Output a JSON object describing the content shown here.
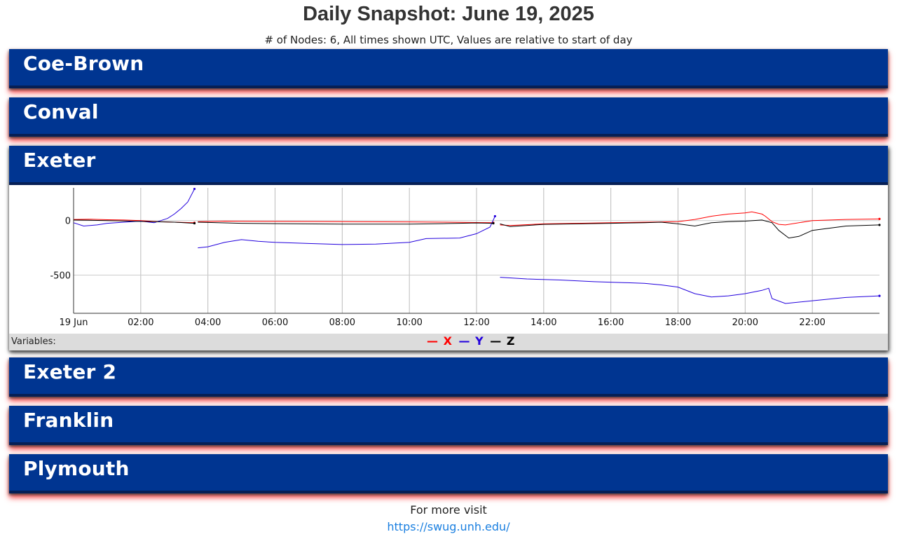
{
  "page": {
    "title": "Daily Snapshot: June 19, 2025",
    "subtitle": "# of Nodes: 6, All times shown UTC, Values are relative to start of day"
  },
  "nodes": [
    {
      "name": "Coe-Brown",
      "expanded": false
    },
    {
      "name": "Conval",
      "expanded": false
    },
    {
      "name": "Exeter",
      "expanded": true
    },
    {
      "name": "Exeter 2",
      "expanded": false
    },
    {
      "name": "Franklin",
      "expanded": false
    },
    {
      "name": "Plymouth",
      "expanded": false
    }
  ],
  "variables_label": "Variables:",
  "legend": [
    {
      "dash": "—",
      "label": "X",
      "color": "#ff0000"
    },
    {
      "dash": "—",
      "label": "Y",
      "color": "#2200dd"
    },
    {
      "dash": "—",
      "label": "Z",
      "color": "#000000"
    }
  ],
  "footer": {
    "text": "For more visit",
    "link": "https://swug.unh.edu/"
  },
  "chart_data": {
    "type": "line",
    "title": "",
    "xlabel": "",
    "ylabel": "",
    "x_unit": "hours UTC",
    "xlim": [
      0,
      24
    ],
    "ylim": [
      -850,
      300
    ],
    "grid": true,
    "x_ticks": [
      {
        "v": 0,
        "label": "19 Jun"
      },
      {
        "v": 2,
        "label": "02:00"
      },
      {
        "v": 4,
        "label": "04:00"
      },
      {
        "v": 6,
        "label": "06:00"
      },
      {
        "v": 8,
        "label": "08:00"
      },
      {
        "v": 10,
        "label": "10:00"
      },
      {
        "v": 12,
        "label": "12:00"
      },
      {
        "v": 14,
        "label": "14:00"
      },
      {
        "v": 16,
        "label": "16:00"
      },
      {
        "v": 18,
        "label": "18:00"
      },
      {
        "v": 20,
        "label": "20:00"
      },
      {
        "v": 22,
        "label": "22:00"
      }
    ],
    "y_ticks": [
      {
        "v": 0,
        "label": "0"
      },
      {
        "v": -500,
        "label": "-500"
      }
    ],
    "series": [
      {
        "name": "X",
        "color": "#ff0000",
        "segments": [
          [
            [
              0,
              10
            ],
            [
              0.5,
              12
            ],
            [
              1,
              8
            ],
            [
              1.5,
              5
            ],
            [
              2,
              0
            ],
            [
              2.5,
              -10
            ],
            [
              3,
              -15
            ],
            [
              3.6,
              -20
            ]
          ],
          [
            [
              3.7,
              -10
            ],
            [
              4.5,
              -5
            ],
            [
              6,
              -8
            ],
            [
              8,
              -10
            ],
            [
              10,
              -12
            ],
            [
              11,
              -15
            ],
            [
              12,
              -18
            ],
            [
              12.5,
              -20
            ]
          ],
          [
            [
              12.7,
              -40
            ],
            [
              13,
              -45
            ],
            [
              14,
              -30
            ],
            [
              15,
              -25
            ],
            [
              16,
              -20
            ],
            [
              17,
              -15
            ],
            [
              18,
              -10
            ],
            [
              18.5,
              10
            ],
            [
              19,
              40
            ],
            [
              19.5,
              60
            ],
            [
              20,
              70
            ],
            [
              20.2,
              80
            ],
            [
              20.5,
              60
            ],
            [
              20.6,
              40
            ],
            [
              20.8,
              -10
            ],
            [
              21,
              -35
            ],
            [
              21.2,
              -40
            ],
            [
              22,
              0
            ],
            [
              23,
              10
            ],
            [
              24,
              15
            ]
          ]
        ]
      },
      {
        "name": "Y",
        "color": "#2200dd",
        "segments": [
          [
            [
              0,
              -20
            ],
            [
              0.3,
              -50
            ],
            [
              0.7,
              -40
            ],
            [
              1,
              -25
            ],
            [
              1.5,
              -15
            ],
            [
              2,
              -5
            ],
            [
              2.4,
              -20
            ],
            [
              2.8,
              20
            ],
            [
              3,
              60
            ],
            [
              3.2,
              110
            ],
            [
              3.4,
              170
            ],
            [
              3.6,
              290
            ]
          ],
          [
            [
              3.7,
              -250
            ],
            [
              4,
              -240
            ],
            [
              4.5,
              -200
            ],
            [
              5,
              -175
            ],
            [
              5.5,
              -190
            ],
            [
              6,
              -200
            ],
            [
              7,
              -210
            ],
            [
              8,
              -220
            ],
            [
              9,
              -215
            ],
            [
              10,
              -200
            ],
            [
              10.5,
              -165
            ],
            [
              11.5,
              -160
            ],
            [
              12,
              -120
            ],
            [
              12.4,
              -60
            ],
            [
              12.55,
              40
            ]
          ],
          [
            [
              12.7,
              -520
            ],
            [
              13.5,
              -535
            ],
            [
              14.5,
              -545
            ],
            [
              15.5,
              -560
            ],
            [
              16.5,
              -570
            ],
            [
              17,
              -575
            ],
            [
              17.5,
              -590
            ],
            [
              18,
              -610
            ],
            [
              18.5,
              -670
            ],
            [
              19,
              -700
            ],
            [
              19.5,
              -690
            ],
            [
              20,
              -670
            ],
            [
              20.5,
              -640
            ],
            [
              20.7,
              -620
            ],
            [
              20.8,
              -715
            ],
            [
              21.2,
              -760
            ],
            [
              22,
              -735
            ],
            [
              23,
              -705
            ],
            [
              24,
              -690
            ]
          ]
        ]
      },
      {
        "name": "Z",
        "color": "#000000",
        "segments": [
          [
            [
              0,
              5
            ],
            [
              1,
              0
            ],
            [
              2,
              -8
            ],
            [
              3,
              -15
            ],
            [
              3.6,
              -25
            ]
          ],
          [
            [
              3.7,
              -15
            ],
            [
              5,
              -25
            ],
            [
              6,
              -28
            ],
            [
              8,
              -32
            ],
            [
              10,
              -32
            ],
            [
              11,
              -28
            ],
            [
              12,
              -22
            ],
            [
              12.5,
              -25
            ]
          ],
          [
            [
              12.7,
              -30
            ],
            [
              13,
              -55
            ],
            [
              14,
              -35
            ],
            [
              15,
              -30
            ],
            [
              16,
              -25
            ],
            [
              17,
              -20
            ],
            [
              17.5,
              -15
            ],
            [
              18,
              -30
            ],
            [
              18.5,
              -50
            ],
            [
              19,
              -20
            ],
            [
              19.5,
              -10
            ],
            [
              20,
              -5
            ],
            [
              20.5,
              5
            ],
            [
              20.8,
              -20
            ],
            [
              21,
              -90
            ],
            [
              21.3,
              -160
            ],
            [
              21.6,
              -145
            ],
            [
              22,
              -90
            ],
            [
              23,
              -50
            ],
            [
              24,
              -40
            ]
          ]
        ]
      }
    ]
  }
}
